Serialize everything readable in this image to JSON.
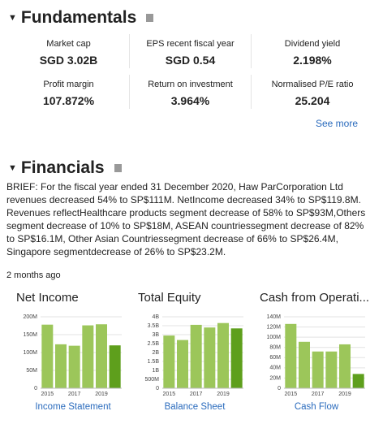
{
  "fundamentals": {
    "title": "Fundamentals",
    "metrics": [
      {
        "label": "Market cap",
        "value": "SGD 3.02B"
      },
      {
        "label": "EPS recent fiscal year",
        "value": "SGD 0.54"
      },
      {
        "label": "Dividend yield",
        "value": "2.198%"
      },
      {
        "label": "Profit margin",
        "value": "107.872%"
      },
      {
        "label": "Return on investment",
        "value": "3.964%"
      },
      {
        "label": "Normalised P/E ratio",
        "value": "25.204"
      }
    ],
    "see_more": "See more"
  },
  "financials": {
    "title": "Financials",
    "brief": "BRIEF: For the fiscal year ended 31 December 2020, Haw ParCorporation Ltd revenues decreased 54% to SP$111M. NetIncome decreased 34% to SP$119.8M. Revenues reflectHealthcare products segment decrease of 58% to SP$93M,Others segment decrease of 10% to SP$18M, ASEAN countriessegment decrease of 82% to SP$16.1M, Other Asian Countriessegment decrease of 66% to SP$26.4M, Singapore segmentdecrease of 26% to SP$23.2M.",
    "age": "2 months ago"
  },
  "chart_data": [
    {
      "type": "bar",
      "title": "Net Income",
      "link": "Income Statement",
      "categories": [
        "2015",
        null,
        "2017",
        null,
        "2019",
        null
      ],
      "values": [
        178,
        123,
        119,
        176,
        179,
        120
      ],
      "colors": [
        "#9cc65a",
        "#9cc65a",
        "#9cc65a",
        "#9cc65a",
        "#9cc65a",
        "#5e9f1c"
      ],
      "ylim": [
        0,
        200
      ],
      "yticks": [
        0,
        {
          "value": 50,
          "label": "50M"
        },
        {
          "value": 100,
          "label": "100M"
        },
        {
          "value": 150,
          "label": "150M"
        },
        {
          "value": 200,
          "label": "200M"
        }
      ],
      "grid": true
    },
    {
      "type": "bar",
      "title": "Total Equity",
      "link": "Balance Sheet",
      "categories": [
        "2015",
        null,
        "2017",
        null,
        "2019",
        null
      ],
      "values": [
        2950,
        2700,
        3550,
        3400,
        3650,
        3350
      ],
      "colors": [
        "#9cc65a",
        "#9cc65a",
        "#9cc65a",
        "#9cc65a",
        "#9cc65a",
        "#5e9f1c"
      ],
      "ylim": [
        0,
        4000
      ],
      "yticks": [
        0,
        {
          "value": 500,
          "label": "500M"
        },
        {
          "value": 1000,
          "label": "1B"
        },
        {
          "value": 1500,
          "label": "1.5B"
        },
        {
          "value": 2000,
          "label": "2B"
        },
        {
          "value": 2500,
          "label": "2.5B"
        },
        {
          "value": 3000,
          "label": "3B"
        },
        {
          "value": 3500,
          "label": "3.5B"
        },
        {
          "value": 4000,
          "label": "4B"
        }
      ],
      "grid": true
    },
    {
      "type": "bar",
      "title": "Cash from Operati...",
      "link": "Cash Flow",
      "categories": [
        "2015",
        null,
        "2017",
        null,
        "2019",
        null
      ],
      "values": [
        126,
        91,
        72,
        72,
        86,
        28
      ],
      "colors": [
        "#9cc65a",
        "#9cc65a",
        "#9cc65a",
        "#9cc65a",
        "#9cc65a",
        "#5e9f1c"
      ],
      "ylim": [
        0,
        140
      ],
      "yticks": [
        0,
        {
          "value": 20,
          "label": "20M"
        },
        {
          "value": 40,
          "label": "40M"
        },
        {
          "value": 60,
          "label": "60M"
        },
        {
          "value": 80,
          "label": "80M"
        },
        {
          "value": 100,
          "label": "100M"
        },
        {
          "value": 120,
          "label": "120M"
        },
        {
          "value": 140,
          "label": "140M"
        }
      ],
      "grid": true
    }
  ]
}
